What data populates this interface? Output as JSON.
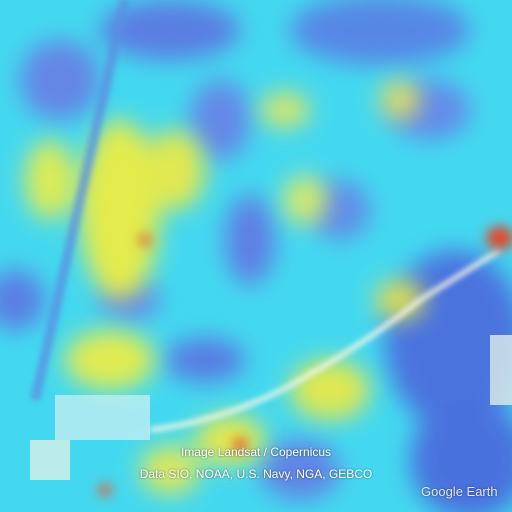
{
  "map": {
    "attribution_line_1": "Image Landsat / Copernicus",
    "attribution_line_2": "Data SIO, NOAA, U.S. Navy, NGA, GEBCO",
    "logo_text": "Google Earth",
    "colors": {
      "base": "#43d6ee",
      "low": "#5b6fe3",
      "mid": "#3fe0d8",
      "high": "#f6ee3a",
      "peak": "#e0482a"
    },
    "layers": [
      "satellite-imagery",
      "heatmap-overlay"
    ]
  }
}
